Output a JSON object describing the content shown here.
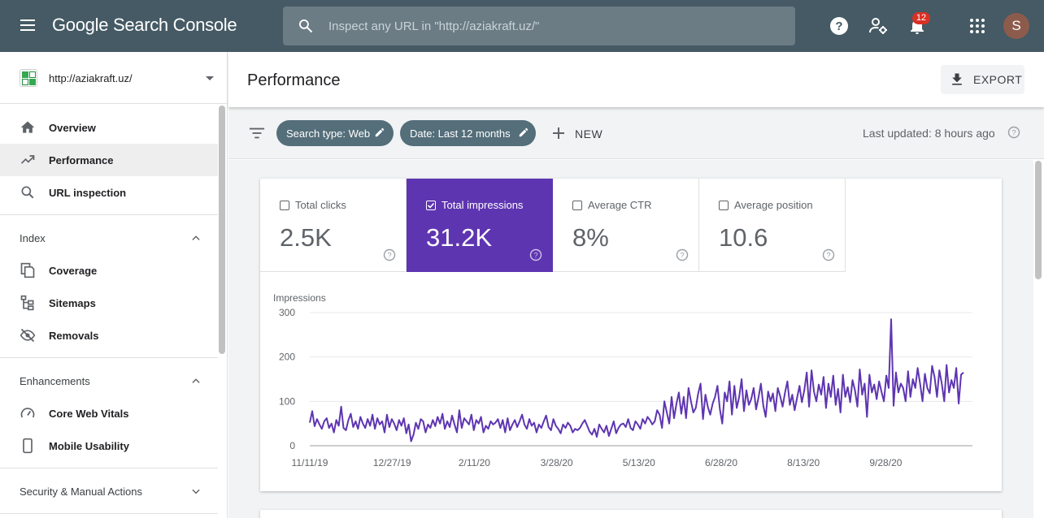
{
  "topbar": {
    "brand": "Google Search Console",
    "search_placeholder": "Inspect any URL in \"http://aziakraft.uz/\"",
    "notifications_count": "12",
    "avatar_initial": "S"
  },
  "sidebar": {
    "property": "http://aziakraft.uz/",
    "items": [
      {
        "label": "Overview",
        "icon": "home-icon"
      },
      {
        "label": "Performance",
        "icon": "trending-up-icon",
        "active": true
      },
      {
        "label": "URL inspection",
        "icon": "search-icon"
      }
    ],
    "sections": [
      {
        "label": "Index",
        "expanded": true,
        "items": [
          {
            "label": "Coverage",
            "icon": "coverage-icon"
          },
          {
            "label": "Sitemaps",
            "icon": "sitemap-icon"
          },
          {
            "label": "Removals",
            "icon": "eye-off-icon"
          }
        ]
      },
      {
        "label": "Enhancements",
        "expanded": true,
        "items": [
          {
            "label": "Core Web Vitals",
            "icon": "speedometer-icon"
          },
          {
            "label": "Mobile Usability",
            "icon": "phone-icon"
          }
        ]
      },
      {
        "label": "Security & Manual Actions",
        "expanded": false,
        "items": []
      }
    ]
  },
  "header": {
    "title": "Performance",
    "export_label": "EXPORT"
  },
  "filters": {
    "chips": [
      "Search type: Web",
      "Date: Last 12 months"
    ],
    "new_label": "NEW",
    "last_updated": "Last updated: 8 hours ago"
  },
  "metrics": [
    {
      "label": "Total clicks",
      "value": "2.5K",
      "selected": false
    },
    {
      "label": "Total impressions",
      "value": "31.2K",
      "selected": true
    },
    {
      "label": "Average CTR",
      "value": "8%",
      "selected": false
    },
    {
      "label": "Average position",
      "value": "10.6",
      "selected": false
    }
  ],
  "colors": {
    "topbar": "#455a64",
    "accent_purple": "#5e35b1",
    "chip": "#546e7a",
    "notification_badge": "#d93025"
  },
  "chart_data": {
    "type": "line",
    "ylabel": "Impressions",
    "ylim": [
      0,
      300
    ],
    "yticks": [
      0,
      100,
      200,
      300
    ],
    "x_tick_labels": [
      "11/11/19",
      "12/27/19",
      "2/11/20",
      "3/28/20",
      "5/13/20",
      "6/28/20",
      "8/13/20",
      "9/28/20"
    ],
    "x_range": [
      "11/11/19",
      "11/10/20"
    ],
    "line_color": "#5e35b1",
    "series": [
      {
        "name": "Impressions",
        "values": [
          52,
          78,
          44,
          60,
          48,
          38,
          55,
          62,
          40,
          50,
          30,
          58,
          45,
          88,
          40,
          35,
          58,
          72,
          42,
          55,
          38,
          65,
          50,
          40,
          60,
          45,
          70,
          38,
          62,
          48,
          55,
          30,
          70,
          42,
          60,
          50,
          35,
          58,
          45,
          62,
          28,
          48,
          10,
          25,
          52,
          38,
          60,
          55,
          30,
          48,
          40,
          58,
          44,
          65,
          50,
          72,
          38,
          55,
          42,
          68,
          48,
          30,
          80,
          40,
          62,
          55,
          48,
          70,
          35,
          58,
          50,
          65,
          30,
          45,
          38,
          55,
          48,
          52,
          60,
          40,
          58,
          30,
          62,
          35,
          48,
          58,
          42,
          55,
          70,
          48,
          38,
          60,
          45,
          52,
          30,
          48,
          40,
          55,
          68,
          42,
          35,
          60,
          45,
          38,
          28,
          48,
          40,
          52,
          45,
          30,
          38,
          35,
          40,
          50,
          58,
          45,
          32,
          25,
          38,
          20,
          48,
          38,
          30,
          45,
          22,
          38,
          55,
          28,
          40,
          48,
          50,
          42,
          60,
          40,
          35,
          55,
          48,
          38,
          60,
          50,
          65,
          58,
          48,
          55,
          80,
          70,
          40,
          100,
          75,
          50,
          110,
          62,
          95,
          120,
          72,
          110,
          62,
          130,
          100,
          75,
          85,
          118,
          140,
          60,
          115,
          88,
          70,
          95,
          110,
          135,
          82,
          50,
          120,
          100,
          145,
          70,
          135,
          85,
          110,
          150,
          78,
          125,
          92,
          105,
          130,
          82,
          108,
          140,
          90,
          65,
          122,
          100,
          118,
          78,
          130,
          112,
          88,
          120,
          145,
          92,
          115,
          80,
          108,
          135,
          98,
          125,
          165,
          88,
          170,
          122,
          100,
          138,
          115,
          155,
          85,
          140,
          110,
          158,
          92,
          128,
          75,
          160,
          110,
          132,
          98,
          148,
          125,
          88,
          172,
          115,
          140,
          65,
          160,
          120,
          138,
          105,
          145,
          122,
          100,
          158,
          130,
          285,
          90,
          165,
          120,
          140,
          130,
          100,
          168,
          110,
          150,
          130,
          175,
          140,
          100,
          162,
          130,
          118,
          180,
          155,
          110,
          170,
          140,
          100,
          182,
          120,
          148,
          130,
          175,
          95,
          160,
          165
        ]
      }
    ]
  }
}
